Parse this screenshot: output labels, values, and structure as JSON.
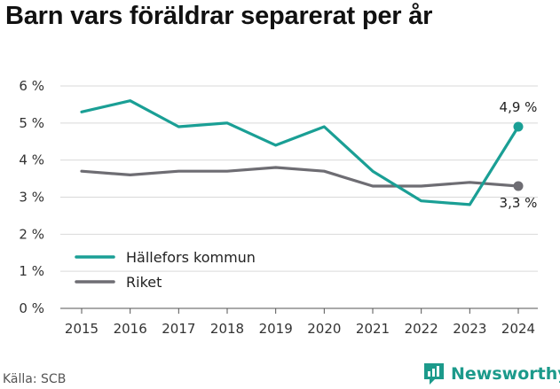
{
  "title": "Barn vars föräldrar separerat per år",
  "source": "Källa: SCB",
  "brand": {
    "name": "Newsworthy",
    "icon": "newsworthy-chart-icon",
    "color": "#1c9a8b"
  },
  "chart_data": {
    "type": "line",
    "title": "Barn vars föräldrar separerat per år",
    "x": [
      "2015",
      "2016",
      "2017",
      "2018",
      "2019",
      "2020",
      "2021",
      "2022",
      "2023",
      "2024"
    ],
    "series": [
      {
        "name": "Hällefors kommun",
        "color": "#1a9f95",
        "values": [
          5.3,
          5.6,
          4.9,
          5.0,
          4.4,
          4.9,
          3.7,
          2.9,
          2.8,
          4.9
        ],
        "end_label": "4,9 %"
      },
      {
        "name": "Riket",
        "color": "#6e6d73",
        "values": [
          3.7,
          3.6,
          3.7,
          3.7,
          3.8,
          3.7,
          3.3,
          3.3,
          3.4,
          3.3
        ],
        "end_label": "3,3 %"
      }
    ],
    "ylim": [
      0,
      6
    ],
    "yticks": [
      0,
      1,
      2,
      3,
      4,
      5,
      6
    ],
    "ytick_labels": [
      "0 %",
      "1 %",
      "2 %",
      "3 %",
      "4 %",
      "5 %",
      "6 %"
    ],
    "xlabel": "",
    "ylabel": "",
    "grid": true,
    "legend_position": "bottom-left"
  }
}
